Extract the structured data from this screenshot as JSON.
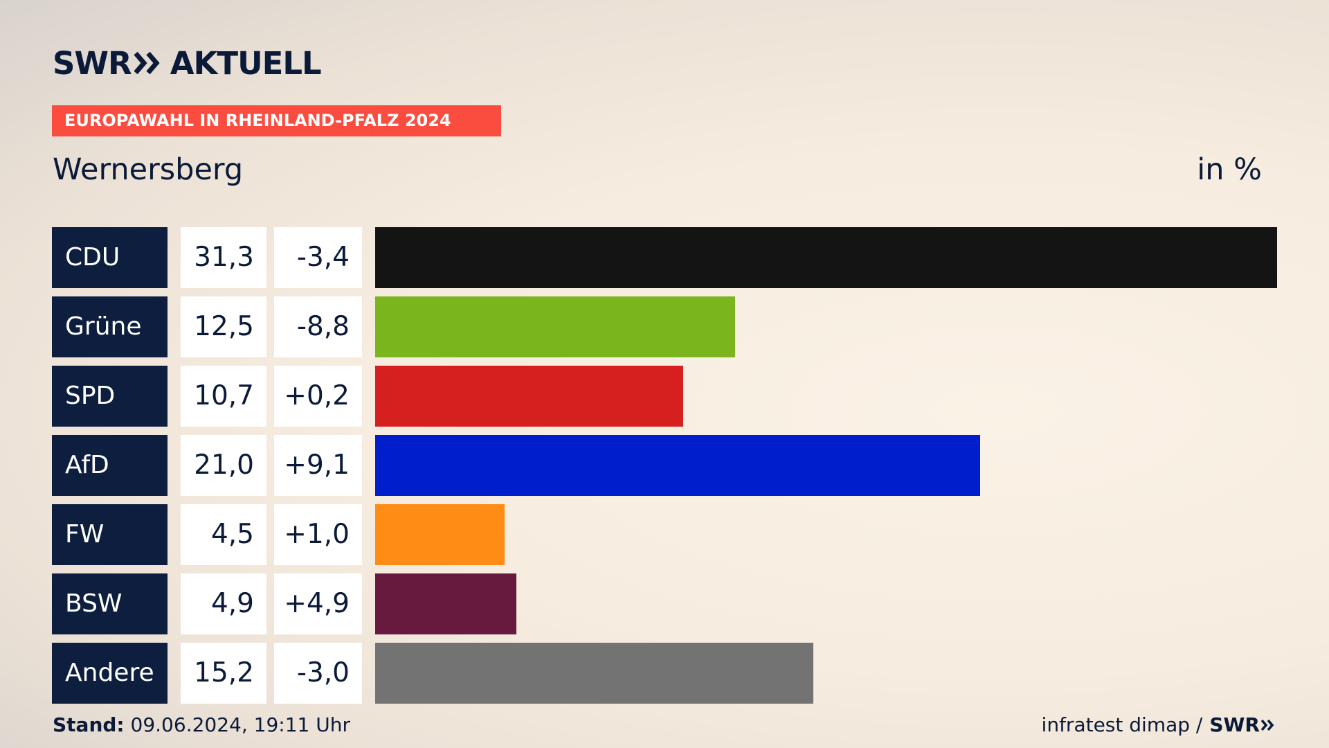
{
  "header": {
    "logo_text": "SWR",
    "logo_suffix": "AKTUELL",
    "banner": "EUROPAWAHL IN RHEINLAND-PFALZ 2024",
    "region": "Wernersberg",
    "unit": "in %"
  },
  "chart_data": {
    "type": "bar",
    "orientation": "horizontal",
    "categories": [
      "CDU",
      "Grüne",
      "SPD",
      "AfD",
      "FW",
      "BSW",
      "Andere"
    ],
    "values": [
      31.3,
      12.5,
      10.7,
      21.0,
      4.5,
      4.9,
      15.2
    ],
    "value_labels": [
      "31,3",
      "12,5",
      "10,7",
      "21,0",
      "4,5",
      "4,9",
      "15,2"
    ],
    "diff_labels": [
      "-3,4",
      "-8,8",
      "+0,2",
      "+9,1",
      "+1,0",
      "+4,9",
      "-3,0"
    ],
    "colors": [
      "#141414",
      "#7ab51d",
      "#d61f1f",
      "#001ecb",
      "#ff8c14",
      "#671a3e",
      "#737373"
    ],
    "title": "Wernersberg",
    "unit": "in %",
    "xlim": [
      0,
      31.3
    ]
  },
  "footer": {
    "stand_label": "Stand:",
    "stand_value": "09.06.2024, 19:11 Uhr",
    "source": "infratest dimap /",
    "source_logo": "SWR"
  }
}
